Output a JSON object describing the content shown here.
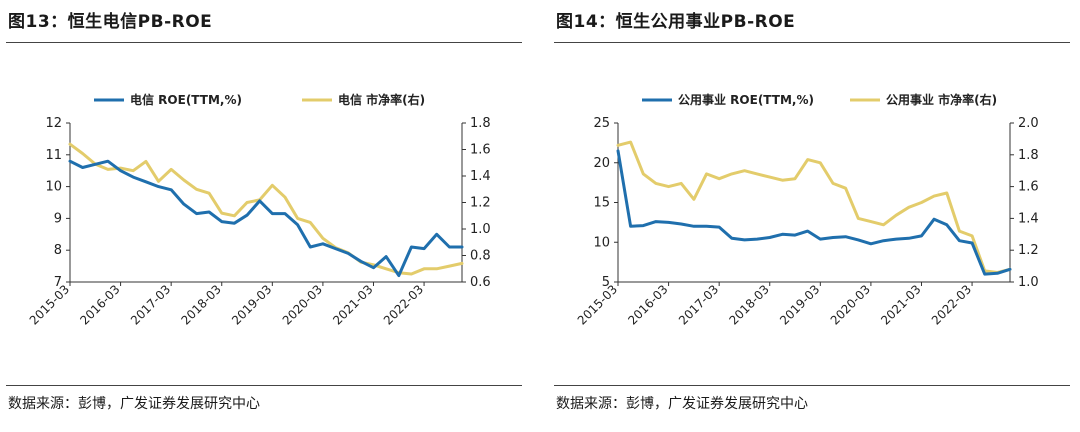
{
  "figures": [
    {
      "title": "图13：恒生电信PB-ROE",
      "source": "数据来源：彭博，广发证券发展研究中心"
    },
    {
      "title": "图14：恒生公用事业PB-ROE",
      "source": "数据来源：彭博，广发证券发展研究中心"
    }
  ],
  "chart_data": [
    {
      "type": "line",
      "title": "",
      "xlabel": "",
      "ylabel": "",
      "x_start": "2015-03",
      "x_end": "2022-12",
      "x_ticks": [
        "2015-03",
        "2016-03",
        "2017-03",
        "2018-03",
        "2019-03",
        "2020-03",
        "2021-03",
        "2022-03"
      ],
      "y_left": {
        "ticks": [
          "7",
          "8",
          "9",
          "10",
          "11",
          "12"
        ],
        "range": [
          7,
          12
        ]
      },
      "y_right": {
        "ticks": [
          "0.6",
          "0.8",
          "1.0",
          "1.2",
          "1.4",
          "1.6",
          "1.8"
        ],
        "range": [
          0.6,
          1.8
        ]
      },
      "legend": "top",
      "colors": {
        "roe": "#1f6fad",
        "pb": "#e3cc6b"
      },
      "series": [
        {
          "name": "电信 ROE(TTM,%)",
          "axis": "left",
          "points": [
            [
              "2015-03",
              10.8
            ],
            [
              "2015-06",
              10.6
            ],
            [
              "2015-09",
              10.7
            ],
            [
              "2015-12",
              10.8
            ],
            [
              "2016-03",
              10.5
            ],
            [
              "2016-06",
              10.3
            ],
            [
              "2016-09",
              10.15
            ],
            [
              "2016-12",
              10.0
            ],
            [
              "2017-03",
              9.9
            ],
            [
              "2017-06",
              9.45
            ],
            [
              "2017-09",
              9.15
            ],
            [
              "2017-12",
              9.2
            ],
            [
              "2018-03",
              8.9
            ],
            [
              "2018-06",
              8.85
            ],
            [
              "2018-09",
              9.1
            ],
            [
              "2018-12",
              9.55
            ],
            [
              "2019-03",
              9.15
            ],
            [
              "2019-06",
              9.15
            ],
            [
              "2019-09",
              8.8
            ],
            [
              "2019-12",
              8.1
            ],
            [
              "2020-03",
              8.2
            ],
            [
              "2020-06",
              8.05
            ],
            [
              "2020-09",
              7.9
            ],
            [
              "2020-12",
              7.65
            ],
            [
              "2021-03",
              7.45
            ],
            [
              "2021-06",
              7.8
            ],
            [
              "2021-09",
              7.2
            ],
            [
              "2021-12",
              8.1
            ],
            [
              "2022-03",
              8.05
            ],
            [
              "2022-06",
              8.5
            ],
            [
              "2022-09",
              8.1
            ],
            [
              "2022-12",
              8.1
            ]
          ]
        },
        {
          "name": "电信 市净率(右)",
          "axis": "right",
          "points": [
            [
              "2015-03",
              1.64
            ],
            [
              "2015-06",
              1.57
            ],
            [
              "2015-09",
              1.49
            ],
            [
              "2015-12",
              1.45
            ],
            [
              "2016-03",
              1.46
            ],
            [
              "2016-06",
              1.44
            ],
            [
              "2016-09",
              1.51
            ],
            [
              "2016-12",
              1.36
            ],
            [
              "2017-03",
              1.45
            ],
            [
              "2017-06",
              1.37
            ],
            [
              "2017-09",
              1.3
            ],
            [
              "2017-12",
              1.27
            ],
            [
              "2018-03",
              1.12
            ],
            [
              "2018-06",
              1.1
            ],
            [
              "2018-09",
              1.2
            ],
            [
              "2018-12",
              1.22
            ],
            [
              "2019-03",
              1.33
            ],
            [
              "2019-06",
              1.24
            ],
            [
              "2019-09",
              1.08
            ],
            [
              "2019-12",
              1.05
            ],
            [
              "2020-03",
              0.93
            ],
            [
              "2020-06",
              0.86
            ],
            [
              "2020-09",
              0.82
            ],
            [
              "2020-12",
              0.75
            ],
            [
              "2021-03",
              0.73
            ],
            [
              "2021-06",
              0.7
            ],
            [
              "2021-09",
              0.67
            ],
            [
              "2021-12",
              0.66
            ],
            [
              "2022-03",
              0.7
            ],
            [
              "2022-06",
              0.7
            ],
            [
              "2022-09",
              0.72
            ],
            [
              "2022-12",
              0.74
            ]
          ]
        }
      ]
    },
    {
      "type": "line",
      "title": "",
      "xlabel": "",
      "ylabel": "",
      "x_start": "2015-03",
      "x_end": "2022-12",
      "x_ticks": [
        "2015-03",
        "2016-03",
        "2017-03",
        "2018-03",
        "2019-03",
        "2020-03",
        "2021-03",
        "2022-03"
      ],
      "y_left": {
        "ticks": [
          "5",
          "10",
          "15",
          "20",
          "25"
        ],
        "range": [
          5,
          25
        ]
      },
      "y_right": {
        "ticks": [
          "1.0",
          "1.2",
          "1.4",
          "1.6",
          "1.8",
          "2.0"
        ],
        "range": [
          1.0,
          2.0
        ]
      },
      "legend": "top",
      "colors": {
        "roe": "#1f6fad",
        "pb": "#e3cc6b"
      },
      "series": [
        {
          "name": "公用事业 ROE(TTM,%)",
          "axis": "left",
          "points": [
            [
              "2015-03",
              21.5
            ],
            [
              "2015-06",
              12.0
            ],
            [
              "2015-09",
              12.1
            ],
            [
              "2015-12",
              12.6
            ],
            [
              "2016-03",
              12.5
            ],
            [
              "2016-06",
              12.3
            ],
            [
              "2016-09",
              12.0
            ],
            [
              "2016-12",
              12.0
            ],
            [
              "2017-03",
              11.9
            ],
            [
              "2017-06",
              10.5
            ],
            [
              "2017-09",
              10.3
            ],
            [
              "2017-12",
              10.4
            ],
            [
              "2018-03",
              10.6
            ],
            [
              "2018-06",
              11.0
            ],
            [
              "2018-09",
              10.9
            ],
            [
              "2018-12",
              11.4
            ],
            [
              "2019-03",
              10.4
            ],
            [
              "2019-06",
              10.6
            ],
            [
              "2019-09",
              10.7
            ],
            [
              "2019-12",
              10.3
            ],
            [
              "2020-03",
              9.8
            ],
            [
              "2020-06",
              10.2
            ],
            [
              "2020-09",
              10.4
            ],
            [
              "2020-12",
              10.5
            ],
            [
              "2021-03",
              10.8
            ],
            [
              "2021-06",
              12.9
            ],
            [
              "2021-09",
              12.2
            ],
            [
              "2021-12",
              10.2
            ],
            [
              "2022-03",
              9.9
            ],
            [
              "2022-06",
              6.0
            ],
            [
              "2022-09",
              6.1
            ],
            [
              "2022-12",
              6.6
            ]
          ]
        },
        {
          "name": "公用事业 市净率(右)",
          "axis": "right",
          "points": [
            [
              "2015-03",
              1.86
            ],
            [
              "2015-06",
              1.88
            ],
            [
              "2015-09",
              1.68
            ],
            [
              "2015-12",
              1.62
            ],
            [
              "2016-03",
              1.6
            ],
            [
              "2016-06",
              1.62
            ],
            [
              "2016-09",
              1.52
            ],
            [
              "2016-12",
              1.68
            ],
            [
              "2017-03",
              1.65
            ],
            [
              "2017-06",
              1.68
            ],
            [
              "2017-09",
              1.7
            ],
            [
              "2017-12",
              1.68
            ],
            [
              "2018-03",
              1.66
            ],
            [
              "2018-06",
              1.64
            ],
            [
              "2018-09",
              1.65
            ],
            [
              "2018-12",
              1.77
            ],
            [
              "2019-03",
              1.75
            ],
            [
              "2019-06",
              1.62
            ],
            [
              "2019-09",
              1.59
            ],
            [
              "2019-12",
              1.4
            ],
            [
              "2020-03",
              1.38
            ],
            [
              "2020-06",
              1.36
            ],
            [
              "2020-09",
              1.42
            ],
            [
              "2020-12",
              1.47
            ],
            [
              "2021-03",
              1.5
            ],
            [
              "2021-06",
              1.54
            ],
            [
              "2021-09",
              1.56
            ],
            [
              "2021-12",
              1.32
            ],
            [
              "2022-03",
              1.29
            ],
            [
              "2022-06",
              1.07
            ],
            [
              "2022-09",
              1.06
            ],
            [
              "2022-12",
              1.08
            ]
          ]
        }
      ]
    }
  ]
}
